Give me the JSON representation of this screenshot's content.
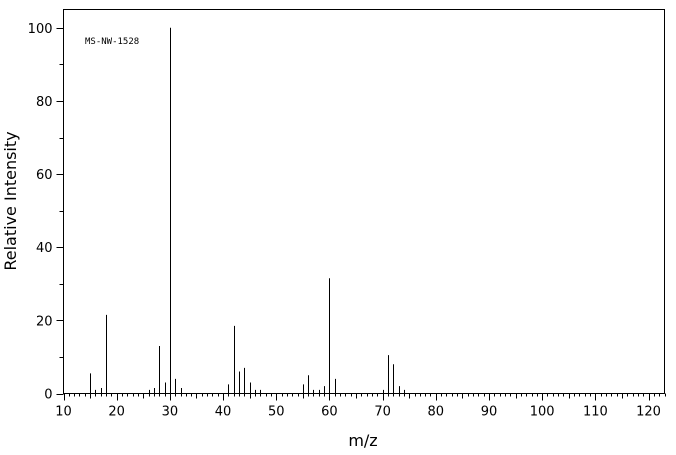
{
  "chart_data": {
    "type": "bar",
    "annotation": "MS-NW-1528",
    "xlabel": "m/z",
    "ylabel": "Relative Intensity",
    "xlim": [
      10,
      123
    ],
    "ylim": [
      0,
      105
    ],
    "xticks_major": [
      10,
      20,
      30,
      40,
      50,
      60,
      70,
      80,
      90,
      100,
      110,
      120
    ],
    "yticks_major": [
      0,
      20,
      40,
      60,
      80,
      100
    ],
    "grid": false,
    "legend": "none",
    "peaks": {
      "mz": [
        15,
        16,
        17,
        18,
        26,
        27,
        28,
        29,
        30,
        31,
        32,
        41,
        42,
        43,
        44,
        45,
        46,
        47,
        55,
        56,
        57,
        58,
        59,
        60,
        61,
        70,
        71,
        72,
        73,
        74
      ],
      "intensity": [
        5.5,
        1.0,
        1.5,
        21.5,
        1.0,
        1.5,
        13.0,
        3.0,
        100.0,
        4.0,
        1.5,
        2.5,
        18.5,
        6.0,
        7.0,
        3.0,
        1.0,
        1.0,
        2.5,
        5.0,
        1.0,
        1.0,
        2.0,
        31.5,
        4.0,
        1.0,
        10.5,
        8.0,
        2.0,
        1.0
      ]
    }
  }
}
